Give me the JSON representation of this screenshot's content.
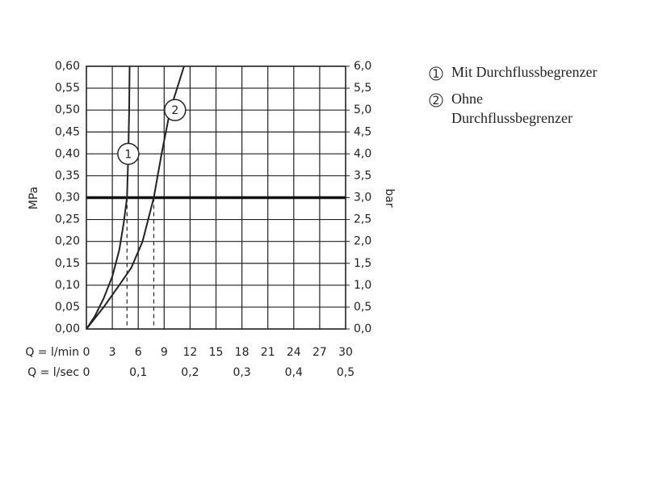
{
  "chart_data": {
    "type": "line",
    "ylabel": "MPa",
    "y2label": "bar",
    "xlabel": "Q = l/min",
    "x2label": "Q = l/sec",
    "xlim": [
      0,
      30
    ],
    "xticks": [
      0,
      3,
      6,
      9,
      12,
      15,
      18,
      21,
      24,
      27,
      30
    ],
    "x2lim": [
      0,
      0.5
    ],
    "x2ticks": [
      0,
      {
        "value": 0.1,
        "label": "0,1"
      },
      {
        "value": 0.2,
        "label": "0,2"
      },
      {
        "value": 0.3,
        "label": "0,3"
      },
      {
        "value": 0.4,
        "label": "0,4"
      },
      {
        "value": 0.5,
        "label": "0,5"
      }
    ],
    "ylim": [
      0,
      0.6
    ],
    "yticks": [
      {
        "value": 0,
        "label": "0,00"
      },
      {
        "value": 0.05,
        "label": "0,05"
      },
      {
        "value": 0.1,
        "label": "0,10"
      },
      {
        "value": 0.15,
        "label": "0,15"
      },
      {
        "value": 0.2,
        "label": "0,20"
      },
      {
        "value": 0.25,
        "label": "0,25"
      },
      {
        "value": 0.3,
        "label": "0,30"
      },
      {
        "value": 0.35,
        "label": "0,35"
      },
      {
        "value": 0.4,
        "label": "0,40"
      },
      {
        "value": 0.45,
        "label": "0,45"
      },
      {
        "value": 0.5,
        "label": "0,50"
      },
      {
        "value": 0.55,
        "label": "0,55"
      },
      {
        "value": 0.6,
        "label": "0,60"
      }
    ],
    "y2lim": [
      0,
      6
    ],
    "y2ticks": [
      {
        "value": 0,
        "label": "0,0"
      },
      {
        "value": 0.5,
        "label": "0,5"
      },
      {
        "value": 1,
        "label": "1,0"
      },
      {
        "value": 1.5,
        "label": "1,5"
      },
      {
        "value": 2,
        "label": "2,0"
      },
      {
        "value": 2.5,
        "label": "2,5"
      },
      {
        "value": 3,
        "label": "3,0"
      },
      {
        "value": 3.5,
        "label": "3,5"
      },
      {
        "value": 4,
        "label": "4,0"
      },
      {
        "value": 4.5,
        "label": "4,5"
      },
      {
        "value": 5,
        "label": "5,0"
      },
      {
        "value": 5.5,
        "label": "5,5"
      },
      {
        "value": 6,
        "label": "6,0"
      }
    ],
    "hline": 0.3,
    "grid": true,
    "series": [
      {
        "name": "Mit Durchflussbegrenzer",
        "marker": "1",
        "color": "#222222",
        "x": [
          0,
          1,
          2,
          3,
          3.8,
          4.3,
          4.7,
          4.85,
          4.95,
          5.0
        ],
        "values": [
          0,
          0.03,
          0.07,
          0.12,
          0.18,
          0.24,
          0.3,
          0.4,
          0.5,
          0.6
        ]
      },
      {
        "name": "Ohne Durchflussbegrenzer",
        "marker": "2",
        "color": "#222222",
        "x": [
          0,
          2,
          3.8,
          5.2,
          6.5,
          7.8,
          8.7,
          9.7,
          11.3
        ],
        "values": [
          0,
          0.05,
          0.1,
          0.14,
          0.2,
          0.3,
          0.4,
          0.5,
          0.6
        ]
      }
    ]
  }
}
